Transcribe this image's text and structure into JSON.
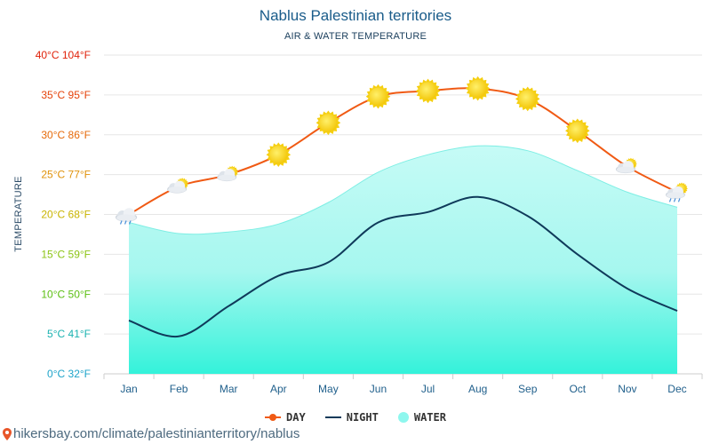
{
  "colors": {
    "day": "#f05a14",
    "night": "#0f3a5a",
    "water": "#8ef7ee",
    "water_bottom": "#3cf2dc",
    "grid": "#e6e6e6",
    "pin": "#e8562a"
  },
  "chart_data": {
    "type": "line",
    "title": "Nablus Palestinian territories",
    "subtitle": "AIR & WATER TEMPERATURE",
    "ylabel": "TEMPERATURE",
    "categories": [
      "Jan",
      "Feb",
      "Mar",
      "Apr",
      "May",
      "Jun",
      "Jul",
      "Aug",
      "Sep",
      "Oct",
      "Nov",
      "Dec"
    ],
    "ylim": [
      0,
      40
    ],
    "yticks": [
      {
        "value": 0,
        "label": "0°C 32°F",
        "color": "#1ca3c9"
      },
      {
        "value": 5,
        "label": "5°C 41°F",
        "color": "#1ab2b0"
      },
      {
        "value": 10,
        "label": "10°C 50°F",
        "color": "#5cbf12"
      },
      {
        "value": 15,
        "label": "15°C 59°F",
        "color": "#8cc414"
      },
      {
        "value": 20,
        "label": "20°C 68°F",
        "color": "#c9b400"
      },
      {
        "value": 25,
        "label": "25°C 77°F",
        "color": "#e0920a"
      },
      {
        "value": 30,
        "label": "30°C 86°F",
        "color": "#e66a0a"
      },
      {
        "value": 35,
        "label": "35°C 95°F",
        "color": "#e5420a"
      },
      {
        "value": 40,
        "label": "40°C 104°F",
        "color": "#e0220a"
      }
    ],
    "series": [
      {
        "name": "DAY",
        "values": [
          20,
          23.5,
          25,
          27.5,
          31.5,
          34.8,
          35.5,
          35.8,
          34.5,
          30.5,
          26,
          22.8
        ]
      },
      {
        "name": "NIGHT",
        "values": [
          6.7,
          4.7,
          8.5,
          12.3,
          14,
          19,
          20.3,
          22.2,
          19.8,
          15,
          10.7,
          7.9
        ]
      },
      {
        "name": "WATER",
        "values": [
          19,
          17.6,
          17.8,
          18.8,
          21.5,
          25.3,
          27.5,
          28.6,
          28,
          25.5,
          22.8,
          20.9
        ]
      }
    ],
    "weather_icons": [
      "rain-cloud",
      "sun-cloud",
      "sun-cloud",
      "sun",
      "sun",
      "sun",
      "sun",
      "sun",
      "sun",
      "sun",
      "sun-cloud",
      "sun-rain-cloud"
    ],
    "legend": [
      "DAY",
      "NIGHT",
      "WATER"
    ],
    "legend_position": "bottom-center"
  },
  "footer": {
    "url": "hikersbay.com/climate/palestinianterritory/nablus"
  }
}
